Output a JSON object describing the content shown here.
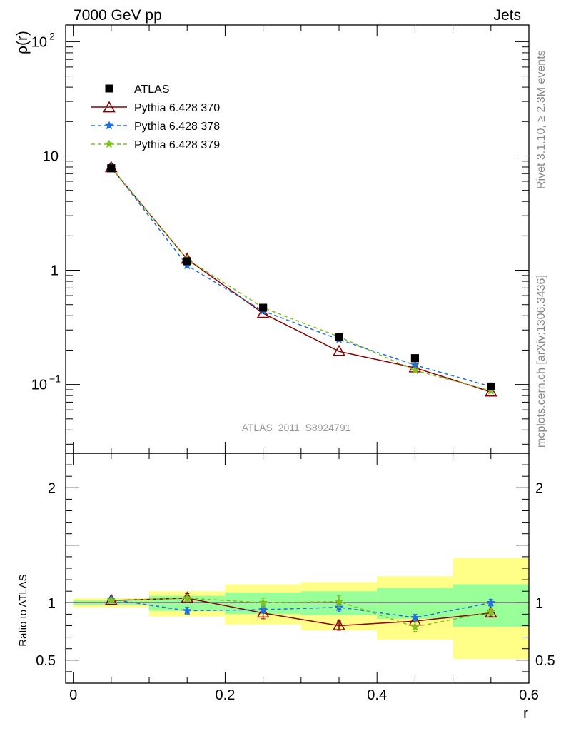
{
  "header": {
    "energy_label": "7000 GeV pp",
    "process_label": "Jets",
    "side_label_top": "Rivet 3.1.10, ≥ 2.3M events",
    "side_label_bottom": "mcplots.cern.ch [arXiv:1306.3436]",
    "analysis_label": "ATLAS_2011_S8924791"
  },
  "colors": {
    "atlas": "#000000",
    "p370": "#8b0000",
    "p378": "#1f6fe0",
    "p379": "#7fbf1f",
    "band_outer": "#ffff88",
    "band_inner": "#99ff99"
  },
  "chart_data": [
    {
      "type": "line",
      "title": "",
      "xlabel": "r",
      "ylabel": "ρ(r)",
      "yscale": "log",
      "xlim": [
        -0.01,
        0.6
      ],
      "ylim": [
        0.025,
        140
      ],
      "y_ticks": [
        {
          "value": 0.1,
          "base": "10",
          "exp": "−1"
        },
        {
          "value": 1,
          "base": "1",
          "exp": ""
        },
        {
          "value": 10,
          "base": "10",
          "exp": ""
        },
        {
          "value": 100,
          "base": "10",
          "exp": "2"
        }
      ],
      "legend_position": "top-left",
      "x": [
        0.05,
        0.15,
        0.25,
        0.35,
        0.45,
        0.55
      ],
      "series": [
        {
          "name": "ATLAS",
          "values": [
            7.8,
            1.2,
            0.47,
            0.26,
            0.17,
            0.096
          ],
          "style": "square"
        },
        {
          "name": "Pythia 6.428 370",
          "values": [
            7.9,
            1.25,
            0.42,
            0.195,
            0.14,
            0.086
          ],
          "style": "triangle-solid"
        },
        {
          "name": "Pythia 6.428 378",
          "values": [
            8.0,
            1.1,
            0.44,
            0.248,
            0.148,
            0.096
          ],
          "style": "star-dashed"
        },
        {
          "name": "Pythia 6.428 379",
          "values": [
            7.9,
            1.25,
            0.47,
            0.262,
            0.133,
            0.088
          ],
          "style": "star-dashed"
        }
      ]
    },
    {
      "type": "line",
      "title": "",
      "xlabel": "r",
      "ylabel": "Ratio to ATLAS",
      "xlim": [
        -0.01,
        0.6
      ],
      "ylim": [
        0.3,
        2.3
      ],
      "x_ticks": [
        "0",
        "0.2",
        "0.4",
        "0.6"
      ],
      "y_ticks": [
        "0.5",
        "1",
        "2"
      ],
      "x": [
        0.05,
        0.15,
        0.25,
        0.35,
        0.45,
        0.55
      ],
      "bins": [
        [
          0.0,
          0.1
        ],
        [
          0.1,
          0.2
        ],
        [
          0.2,
          0.3
        ],
        [
          0.3,
          0.4
        ],
        [
          0.4,
          0.5
        ],
        [
          0.5,
          0.6
        ]
      ],
      "band_outer": [
        [
          0.96,
          1.04
        ],
        [
          0.88,
          1.1
        ],
        [
          0.81,
          1.16
        ],
        [
          0.76,
          1.18
        ],
        [
          0.68,
          1.23
        ],
        [
          0.51,
          1.39
        ]
      ],
      "band_inner": [
        [
          0.98,
          1.02
        ],
        [
          0.93,
          1.06
        ],
        [
          0.9,
          1.09
        ],
        [
          0.89,
          1.1
        ],
        [
          0.86,
          1.13
        ],
        [
          0.79,
          1.16
        ]
      ],
      "reference": 1,
      "series": [
        {
          "name": "Pythia 6.428 370",
          "values": [
            1.02,
            1.04,
            0.91,
            0.8,
            0.84,
            0.91
          ],
          "errors": [
            0.02,
            0.04,
            0.05,
            0.04,
            0.04,
            0.03
          ]
        },
        {
          "name": "Pythia 6.428 378",
          "values": [
            1.03,
            0.93,
            0.94,
            0.96,
            0.87,
            1.0
          ],
          "errors": [
            0.02,
            0.03,
            0.03,
            0.04,
            0.03,
            0.03
          ]
        },
        {
          "name": "Pythia 6.428 379",
          "values": [
            1.02,
            1.04,
            1.0,
            1.01,
            0.79,
            0.92
          ],
          "errors": [
            0.02,
            0.03,
            0.04,
            0.05,
            0.04,
            0.03
          ]
        }
      ]
    }
  ]
}
